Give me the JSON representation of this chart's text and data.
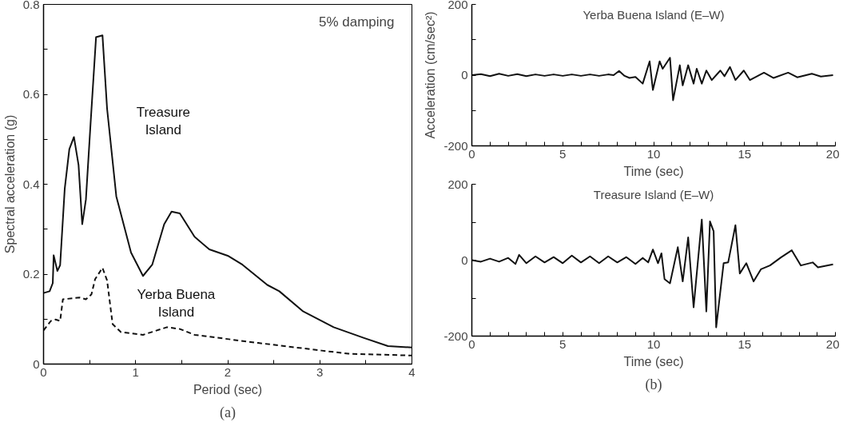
{
  "chart_data": [
    {
      "type": "line",
      "xlabel": "Period (sec)",
      "ylabel": "Spectral acceleration (g)",
      "xlim": [
        0,
        4
      ],
      "ylim": [
        0,
        0.8
      ],
      "xticks": [
        0,
        {
          "value": 0.5,
          "label": null
        },
        1,
        {
          "value": 1.5,
          "label": null
        },
        2,
        {
          "value": 2.5,
          "label": null
        },
        3,
        {
          "value": 3.5,
          "label": null
        },
        4
      ],
      "yticks": [
        0,
        {
          "value": 0.1,
          "label": null
        },
        0.2,
        {
          "value": 0.3,
          "label": null
        },
        0.4,
        {
          "value": 0.5,
          "label": null
        },
        0.6,
        {
          "value": 0.7,
          "label": null
        },
        0.8
      ],
      "grid": false,
      "annotations": [
        "5% damping",
        "(a)"
      ],
      "series": [
        {
          "name": "Treasure Island",
          "color": "#111111",
          "line_style": "solid",
          "x": [
            0,
            0.066,
            0.1,
            0.11,
            0.15,
            0.18,
            0.23,
            0.28,
            0.33,
            0.38,
            0.42,
            0.46,
            0.51,
            0.57,
            0.64,
            0.69,
            0.79,
            0.95,
            1.08,
            1.18,
            1.31,
            1.39,
            1.48,
            1.64,
            1.8,
            2.0,
            2.16,
            2.43,
            2.56,
            2.82,
            3.15,
            3.48,
            3.74,
            4.0
          ],
          "values": [
            0.158,
            0.162,
            0.18,
            0.242,
            0.207,
            0.22,
            0.39,
            0.478,
            0.505,
            0.443,
            0.311,
            0.366,
            0.533,
            0.727,
            0.731,
            0.568,
            0.373,
            0.248,
            0.196,
            0.221,
            0.311,
            0.339,
            0.335,
            0.283,
            0.255,
            0.241,
            0.221,
            0.176,
            0.162,
            0.117,
            0.082,
            0.058,
            0.04,
            0.037
          ]
        },
        {
          "name": "Yerba Buena Island",
          "color": "#111111",
          "line_style": "dashed",
          "x": [
            0,
            0.08,
            0.13,
            0.18,
            0.21,
            0.39,
            0.46,
            0.52,
            0.56,
            0.64,
            0.69,
            0.75,
            0.84,
            1.08,
            1.34,
            1.48,
            1.64,
            2.33,
            3.02,
            3.31,
            4.0
          ],
          "values": [
            0.075,
            0.096,
            0.099,
            0.096,
            0.144,
            0.148,
            0.144,
            0.155,
            0.189,
            0.214,
            0.186,
            0.089,
            0.071,
            0.065,
            0.082,
            0.078,
            0.065,
            0.047,
            0.03,
            0.023,
            0.019
          ]
        }
      ]
    },
    {
      "type": "line",
      "title": "Yerba Buena Island (E–W)",
      "xlabel": "Time (sec)",
      "ylabel": "Acceleration (cm/sec²)",
      "xlim": [
        0,
        20
      ],
      "ylim": [
        -200,
        200
      ],
      "xticks": [
        0,
        {
          "value": 1,
          "label": null
        },
        {
          "value": 2,
          "label": null
        },
        {
          "value": 3,
          "label": null
        },
        {
          "value": 4,
          "label": null
        },
        5,
        {
          "value": 6,
          "label": null
        },
        {
          "value": 7,
          "label": null
        },
        {
          "value": 8,
          "label": null
        },
        {
          "value": 9,
          "label": null
        },
        10,
        {
          "value": 11,
          "label": null
        },
        {
          "value": 12,
          "label": null
        },
        {
          "value": 13,
          "label": null
        },
        {
          "value": 14,
          "label": null
        },
        15,
        {
          "value": 16,
          "label": null
        },
        {
          "value": 17,
          "label": null
        },
        {
          "value": 18,
          "label": null
        },
        {
          "value": 19,
          "label": null
        },
        20
      ],
      "yticks": [
        -200,
        {
          "value": -100,
          "label": null
        },
        0,
        {
          "value": 100,
          "label": null
        },
        200
      ],
      "grid": false,
      "series": [
        {
          "color": "#111111",
          "line_style": "solid",
          "x": [
            0,
            0.5,
            1,
            1.5,
            2,
            2.5,
            3,
            3.5,
            4,
            4.5,
            5,
            5.5,
            6,
            6.5,
            7,
            7.5,
            7.8,
            8.1,
            8.4,
            8.67,
            9.0,
            9.4,
            9.78,
            9.96,
            10.33,
            10.5,
            10.9,
            11.07,
            11.44,
            11.6,
            11.9,
            12.2,
            12.37,
            12.65,
            12.9,
            13.2,
            13.67,
            13.9,
            14.2,
            14.5,
            14.96,
            15.3,
            16.07,
            16.6,
            17.4,
            17.9,
            18.7,
            19.2,
            19.87
          ],
          "values": [
            0,
            3,
            -3,
            4,
            -2,
            3,
            -3,
            2,
            -2,
            2,
            -2,
            2,
            -2,
            2,
            -2,
            2,
            0,
            12,
            -2,
            -8,
            -5,
            -24,
            39,
            -42,
            39,
            18,
            49,
            -71,
            28,
            -29,
            28,
            -24,
            18,
            -24,
            13,
            -14,
            13,
            -3,
            23,
            -14,
            13,
            -14,
            7,
            -8,
            7,
            -6,
            4,
            -4,
            0
          ]
        }
      ]
    },
    {
      "type": "line",
      "title": "Treasure Island (E–W)",
      "xlabel": "Time (sec)",
      "xlim": [
        0,
        20
      ],
      "ylim": [
        -200,
        200
      ],
      "xticks": [
        0,
        {
          "value": 1,
          "label": null
        },
        {
          "value": 2,
          "label": null
        },
        {
          "value": 3,
          "label": null
        },
        {
          "value": 4,
          "label": null
        },
        5,
        {
          "value": 6,
          "label": null
        },
        {
          "value": 7,
          "label": null
        },
        {
          "value": 8,
          "label": null
        },
        {
          "value": 9,
          "label": null
        },
        10,
        {
          "value": 11,
          "label": null
        },
        {
          "value": 12,
          "label": null
        },
        {
          "value": 13,
          "label": null
        },
        {
          "value": 14,
          "label": null
        },
        15,
        {
          "value": 16,
          "label": null
        },
        {
          "value": 17,
          "label": null
        },
        {
          "value": 18,
          "label": null
        },
        {
          "value": 19,
          "label": null
        },
        20
      ],
      "yticks": [
        -200,
        {
          "value": -100,
          "label": null
        },
        0,
        {
          "value": 100,
          "label": null
        },
        200
      ],
      "grid": false,
      "annotations": [
        "(b)"
      ],
      "series": [
        {
          "color": "#111111",
          "line_style": "solid",
          "x": [
            0,
            0.5,
            1,
            1.5,
            2,
            2.4,
            2.6,
            3,
            3.5,
            4,
            4.5,
            5,
            5.5,
            6,
            6.5,
            7,
            7.5,
            8,
            8.5,
            9,
            9.4,
            9.7,
            9.96,
            10.24,
            10.43,
            10.6,
            10.9,
            11.33,
            11.6,
            11.9,
            12.2,
            12.65,
            12.9,
            13.1,
            13.3,
            13.44,
            13.85,
            14.1,
            14.5,
            14.74,
            15.1,
            15.5,
            15.9,
            16.4,
            17.0,
            17.6,
            18.1,
            18.75,
            19.04,
            19.87
          ],
          "values": [
            0,
            -4,
            4,
            -4,
            6,
            -10,
            14,
            -8,
            10,
            -6,
            8,
            -8,
            12,
            -6,
            10,
            -8,
            10,
            -6,
            8,
            -10,
            6,
            -6,
            28,
            -8,
            18,
            -50,
            -61,
            34,
            -56,
            60,
            -124,
            107,
            -135,
            102,
            76,
            -177,
            -8,
            -6,
            92,
            -35,
            -8,
            -56,
            -24,
            -14,
            7,
            26,
            -14,
            -6,
            -19,
            -11
          ]
        }
      ]
    }
  ]
}
